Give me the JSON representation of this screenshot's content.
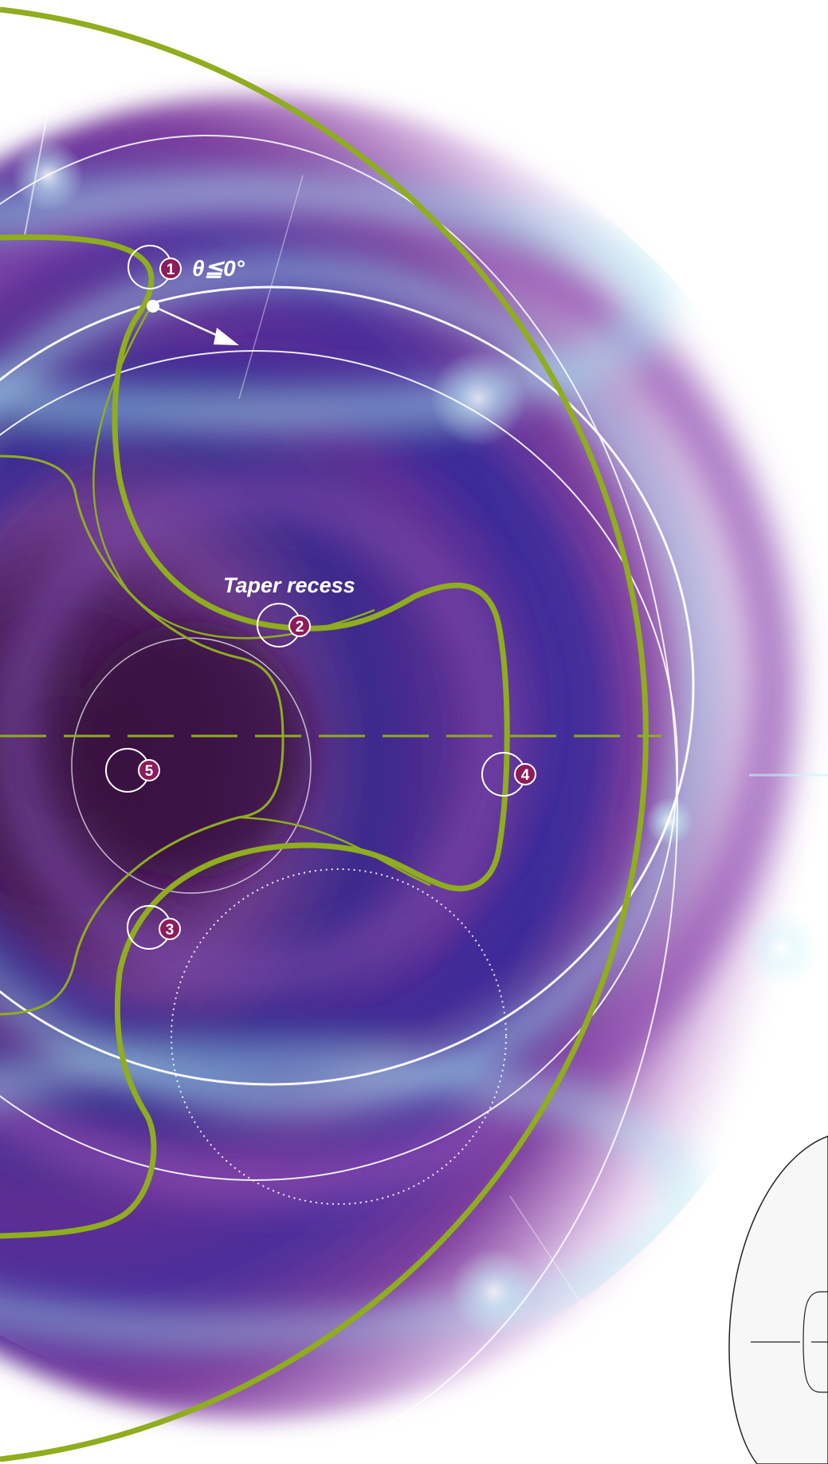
{
  "diagram": {
    "callouts": [
      {
        "id": "1",
        "label": "1"
      },
      {
        "id": "2",
        "label": "2"
      },
      {
        "id": "3",
        "label": "3"
      },
      {
        "id": "4",
        "label": "4"
      },
      {
        "id": "5",
        "label": "5"
      }
    ],
    "angle_label": "θ≦0°",
    "taper_label": "Taper recess",
    "colors": {
      "outline_green": "#8fad1e",
      "badge_fill": "#8c1c5c",
      "ring_white": "#ffffff",
      "disc_purple": "#5a2a8e",
      "disc_deep": "#2a1760",
      "highlight_cyan": "#9ee8f4",
      "background": "#ffffff"
    }
  }
}
